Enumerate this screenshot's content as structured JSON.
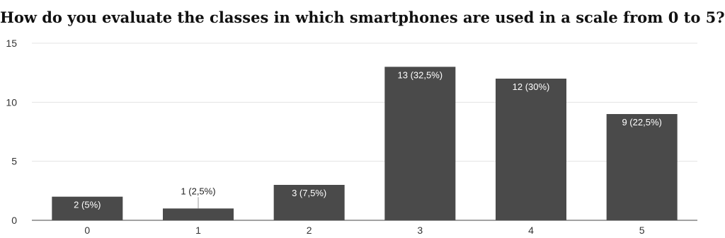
{
  "chart_data": {
    "type": "bar",
    "title": "How do you evaluate the classes in which smartphones are used in a scale from 0 to 5?",
    "xlabel": "",
    "ylabel": "",
    "categories": [
      "0",
      "1",
      "2",
      "3",
      "4",
      "5"
    ],
    "values": [
      2,
      1,
      3,
      13,
      12,
      9
    ],
    "data_labels": [
      "2 (5%)",
      "1 (2,5%)",
      "3 (7,5%)",
      "13 (32,5%)",
      "12 (30%)",
      "9 (22,5%)"
    ],
    "ylim": [
      0,
      15
    ],
    "yticks": [
      0,
      5,
      10,
      15
    ],
    "grid": true,
    "legend": "none",
    "colors": {
      "bar": "#4a4a4a",
      "grid": "#e3e3e3",
      "label_inside": "#ffffff",
      "label_outside": "#222222"
    }
  }
}
